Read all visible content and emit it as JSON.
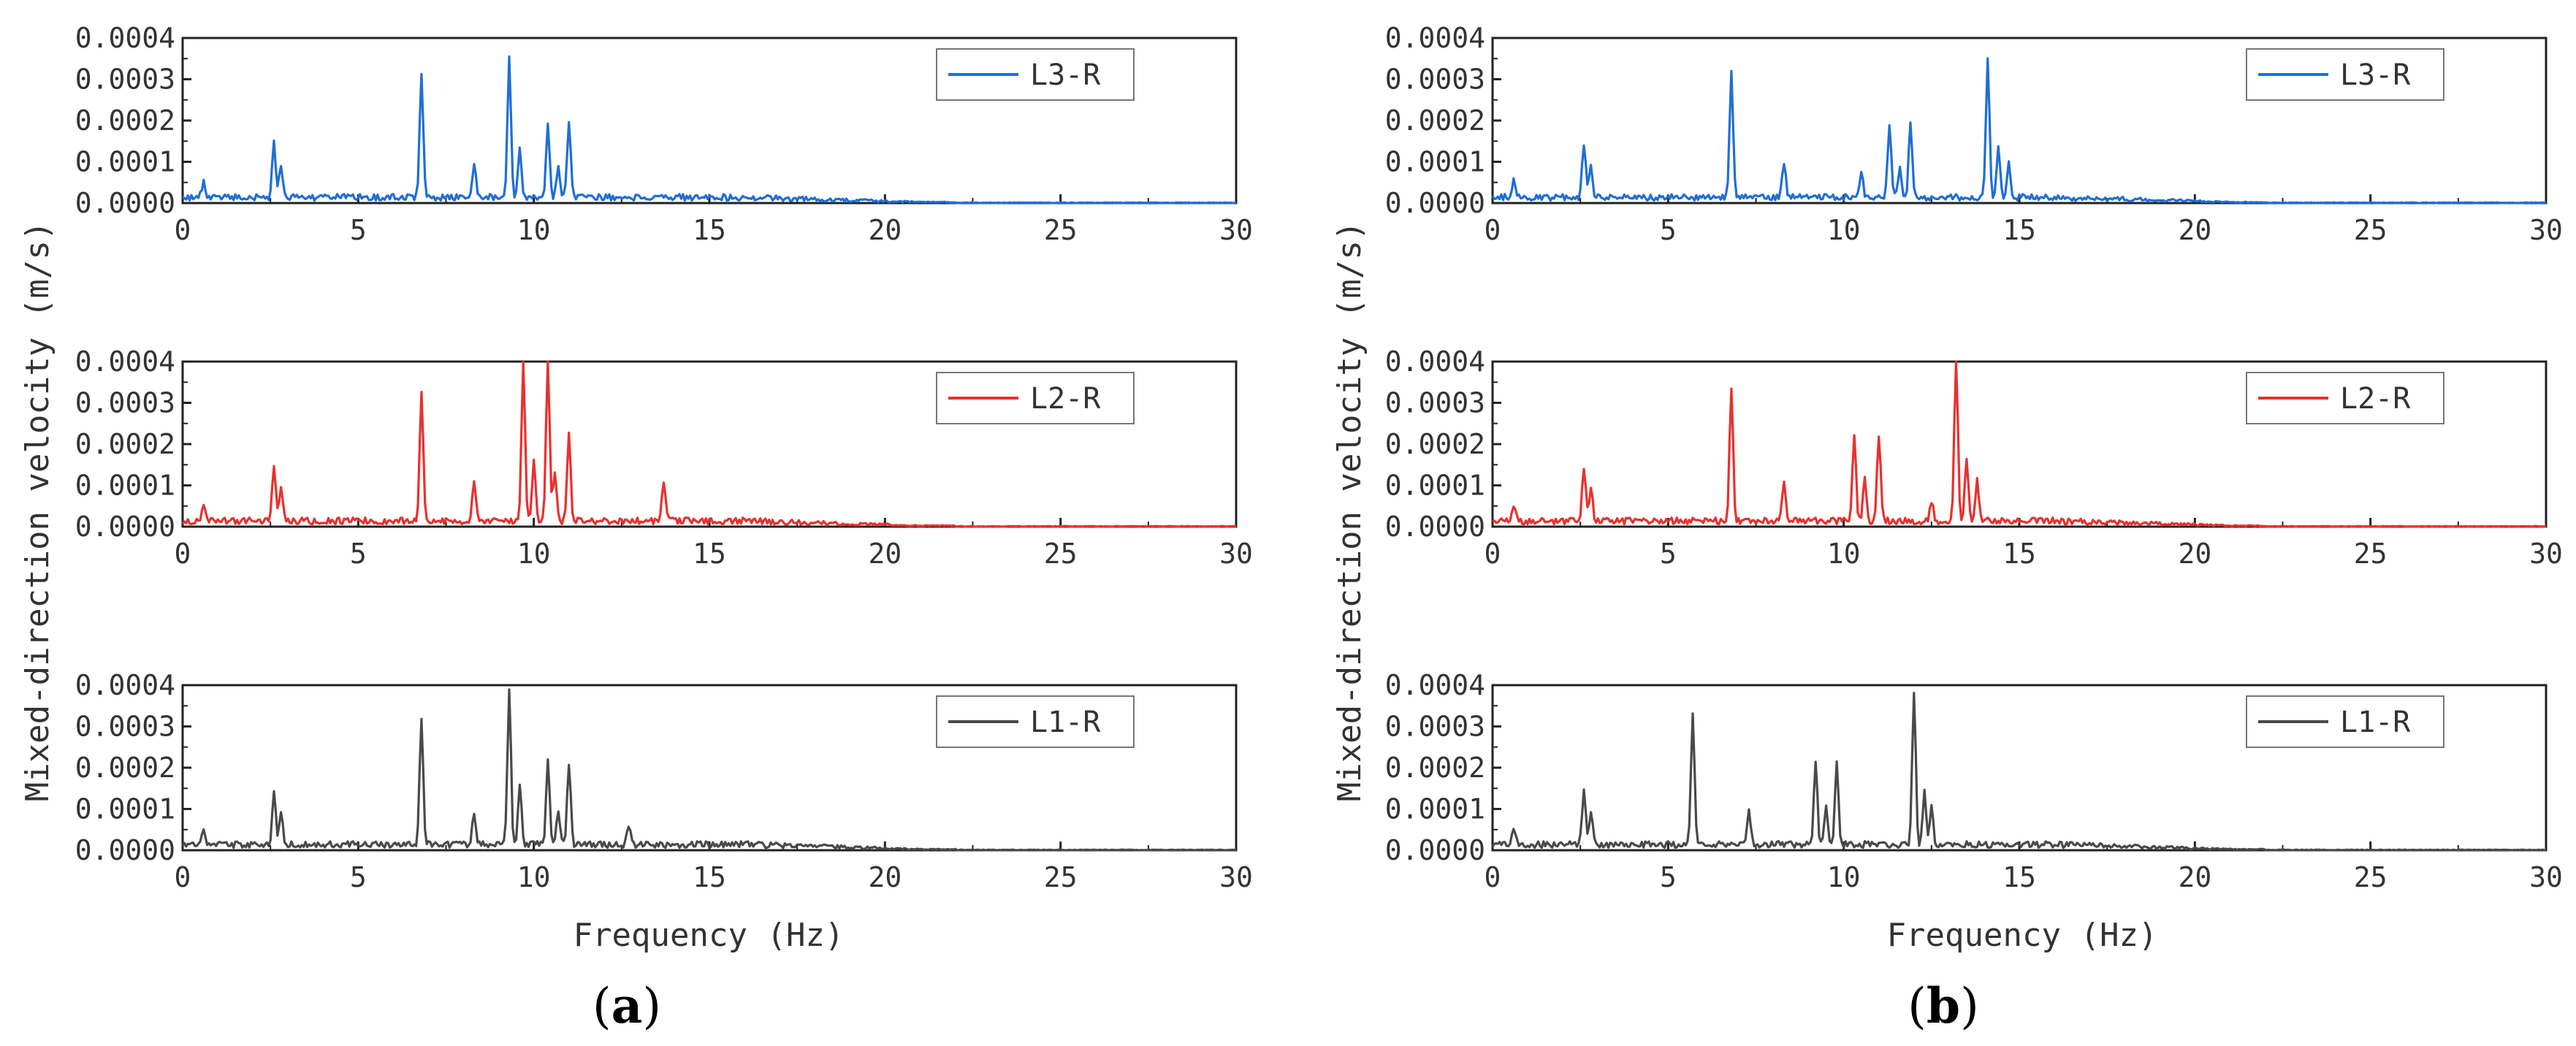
{
  "figure": {
    "y_axis_title": "Mixed-direction velocity (m/s)",
    "x_axis_title": "Frequency (Hz)",
    "panel_labels": [
      {
        "open": "(",
        "letter": "a",
        "close": ")"
      },
      {
        "open": "(",
        "letter": "b",
        "close": ")"
      }
    ]
  },
  "chart_data": [
    {
      "type": "line",
      "panel": "a",
      "position": "top",
      "series": [
        {
          "name": "L3-R",
          "color": "#1f6fd6",
          "peaks": [
            [
              0.6,
              4e-05
            ],
            [
              2.6,
              0.00013
            ],
            [
              2.8,
              8e-05
            ],
            [
              6.8,
              0.0003
            ],
            [
              8.3,
              8e-05
            ],
            [
              9.3,
              0.000335
            ],
            [
              9.6,
              0.00012
            ],
            [
              10.4,
              0.00018
            ],
            [
              10.7,
              7e-05
            ],
            [
              11.0,
              0.00018
            ]
          ]
        }
      ],
      "xlabel": "",
      "ylabel": "",
      "xlim": [
        0,
        30
      ],
      "ylim": [
        0,
        0.0004
      ],
      "x_ticks": [
        "0",
        "5",
        "10",
        "15",
        "20",
        "25",
        "30"
      ],
      "y_ticks": [
        "0.0000",
        "0.0001",
        "0.0002",
        "0.0003",
        "0.0004"
      ],
      "legend_position": "top-right"
    },
    {
      "type": "line",
      "panel": "a",
      "position": "middle",
      "series": [
        {
          "name": "L2-R",
          "color": "#e8312f",
          "peaks": [
            [
              0.6,
              4e-05
            ],
            [
              2.6,
              0.00013
            ],
            [
              2.8,
              8e-05
            ],
            [
              6.8,
              0.00032
            ],
            [
              8.3,
              9e-05
            ],
            [
              9.7,
              0.00038
            ],
            [
              10.0,
              0.00015
            ],
            [
              10.4,
              0.0004
            ],
            [
              10.6,
              0.00012
            ],
            [
              11.0,
              0.00021
            ],
            [
              13.7,
              9e-05
            ]
          ]
        }
      ],
      "xlabel": "",
      "ylabel": "",
      "xlim": [
        0,
        30
      ],
      "ylim": [
        0,
        0.0004
      ],
      "x_ticks": [
        "0",
        "5",
        "10",
        "15",
        "20",
        "25",
        "30"
      ],
      "y_ticks": [
        "0.0000",
        "0.0001",
        "0.0002",
        "0.0003",
        "0.0004"
      ],
      "legend_position": "top-right"
    },
    {
      "type": "line",
      "panel": "a",
      "position": "bottom",
      "series": [
        {
          "name": "L1-R",
          "color": "#4a4a4a",
          "peaks": [
            [
              0.6,
              4e-05
            ],
            [
              2.6,
              0.00013
            ],
            [
              2.8,
              8e-05
            ],
            [
              6.8,
              0.00031
            ],
            [
              8.3,
              8e-05
            ],
            [
              9.3,
              0.000375
            ],
            [
              9.6,
              0.00015
            ],
            [
              10.4,
              0.0002
            ],
            [
              10.7,
              8e-05
            ],
            [
              11.0,
              0.0002
            ],
            [
              12.7,
              5e-05
            ]
          ]
        }
      ],
      "xlabel": "Frequency (Hz)",
      "ylabel": "",
      "xlim": [
        0,
        30
      ],
      "ylim": [
        0,
        0.0004
      ],
      "x_ticks": [
        "0",
        "5",
        "10",
        "15",
        "20",
        "25",
        "30"
      ],
      "y_ticks": [
        "0.0000",
        "0.0001",
        "0.0002",
        "0.0003",
        "0.0004"
      ],
      "legend_position": "top-right"
    },
    {
      "type": "line",
      "panel": "b",
      "position": "top",
      "series": [
        {
          "name": "L3-R",
          "color": "#1f6fd6",
          "peaks": [
            [
              0.6,
              4e-05
            ],
            [
              2.6,
              0.00013
            ],
            [
              2.8,
              8e-05
            ],
            [
              6.8,
              0.0003
            ],
            [
              8.3,
              8e-05
            ],
            [
              10.5,
              6e-05
            ],
            [
              11.3,
              0.00018
            ],
            [
              11.6,
              7e-05
            ],
            [
              11.9,
              0.00018
            ],
            [
              14.1,
              0.000335
            ],
            [
              14.4,
              0.00012
            ],
            [
              14.7,
              8e-05
            ]
          ]
        }
      ],
      "xlabel": "",
      "ylabel": "",
      "xlim": [
        0,
        30
      ],
      "ylim": [
        0,
        0.0004
      ],
      "x_ticks": [
        "0",
        "5",
        "10",
        "15",
        "20",
        "25",
        "30"
      ],
      "y_ticks": [
        "0.0000",
        "0.0001",
        "0.0002",
        "0.0003",
        "0.0004"
      ],
      "legend_position": "top-right"
    },
    {
      "type": "line",
      "panel": "b",
      "position": "middle",
      "series": [
        {
          "name": "L2-R",
          "color": "#e8312f",
          "peaks": [
            [
              0.6,
              4e-05
            ],
            [
              2.6,
              0.00013
            ],
            [
              2.8,
              8e-05
            ],
            [
              6.8,
              0.00032
            ],
            [
              8.3,
              9e-05
            ],
            [
              10.3,
              0.00021
            ],
            [
              10.6,
              0.0001
            ],
            [
              11.0,
              0.00021
            ],
            [
              12.5,
              5e-05
            ],
            [
              13.2,
              0.0004
            ],
            [
              13.5,
              0.00015
            ],
            [
              13.8,
              0.0001
            ]
          ]
        }
      ],
      "xlabel": "",
      "ylabel": "",
      "xlim": [
        0,
        30
      ],
      "ylim": [
        0,
        0.0004
      ],
      "x_ticks": [
        "0",
        "5",
        "10",
        "15",
        "20",
        "25",
        "30"
      ],
      "y_ticks": [
        "0.0000",
        "0.0001",
        "0.0002",
        "0.0003",
        "0.0004"
      ],
      "legend_position": "top-right"
    },
    {
      "type": "line",
      "panel": "b",
      "position": "bottom",
      "series": [
        {
          "name": "L1-R",
          "color": "#4a4a4a",
          "peaks": [
            [
              0.6,
              4e-05
            ],
            [
              2.6,
              0.00013
            ],
            [
              2.8,
              8e-05
            ],
            [
              5.7,
              0.00031
            ],
            [
              7.3,
              8e-05
            ],
            [
              9.2,
              0.0002
            ],
            [
              9.5,
              9e-05
            ],
            [
              9.8,
              0.0002
            ],
            [
              12.0,
              0.000375
            ],
            [
              12.3,
              0.00013
            ],
            [
              12.5,
              9e-05
            ]
          ]
        }
      ],
      "xlabel": "Frequency (Hz)",
      "ylabel": "",
      "xlim": [
        0,
        30
      ],
      "ylim": [
        0,
        0.0004
      ],
      "x_ticks": [
        "0",
        "5",
        "10",
        "15",
        "20",
        "25",
        "30"
      ],
      "y_ticks": [
        "0.0000",
        "0.0001",
        "0.0002",
        "0.0003",
        "0.0004"
      ],
      "legend_position": "top-right"
    }
  ]
}
